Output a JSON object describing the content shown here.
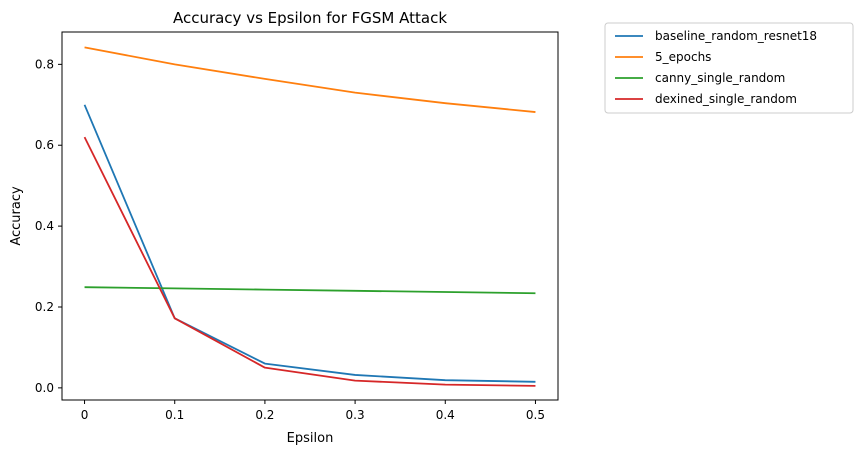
{
  "chart_data": {
    "type": "line",
    "title": "Accuracy vs Epsilon for FGSM Attack",
    "xlabel": "Epsilon",
    "ylabel": "Accuracy",
    "x": [
      0,
      0.1,
      0.2,
      0.3,
      0.4,
      0.5
    ],
    "x_tick_labels": [
      "0",
      "0.1",
      "0.2",
      "0.3",
      "0.4",
      "0.5"
    ],
    "y_ticks": [
      0.0,
      0.2,
      0.4,
      0.6,
      0.8
    ],
    "y_tick_labels": [
      "0.0",
      "0.2",
      "0.4",
      "0.6",
      "0.8"
    ],
    "xlim": [
      -0.025,
      0.525
    ],
    "ylim": [
      -0.03,
      0.88
    ],
    "grid": false,
    "legend_placement": "outside-top-right",
    "series": [
      {
        "name": "baseline_random_resnet18",
        "color": "#1f77b4",
        "values": [
          0.7,
          0.172,
          0.06,
          0.032,
          0.019,
          0.015
        ]
      },
      {
        "name": "5_epochs",
        "color": "#ff7f0e",
        "values": [
          0.842,
          0.8,
          0.764,
          0.73,
          0.704,
          0.682
        ]
      },
      {
        "name": "canny_single_random",
        "color": "#2ca02c",
        "values": [
          0.249,
          0.246,
          0.243,
          0.24,
          0.237,
          0.234
        ]
      },
      {
        "name": "dexined_single_random",
        "color": "#d62728",
        "values": [
          0.62,
          0.172,
          0.05,
          0.018,
          0.008,
          0.005
        ]
      }
    ]
  }
}
